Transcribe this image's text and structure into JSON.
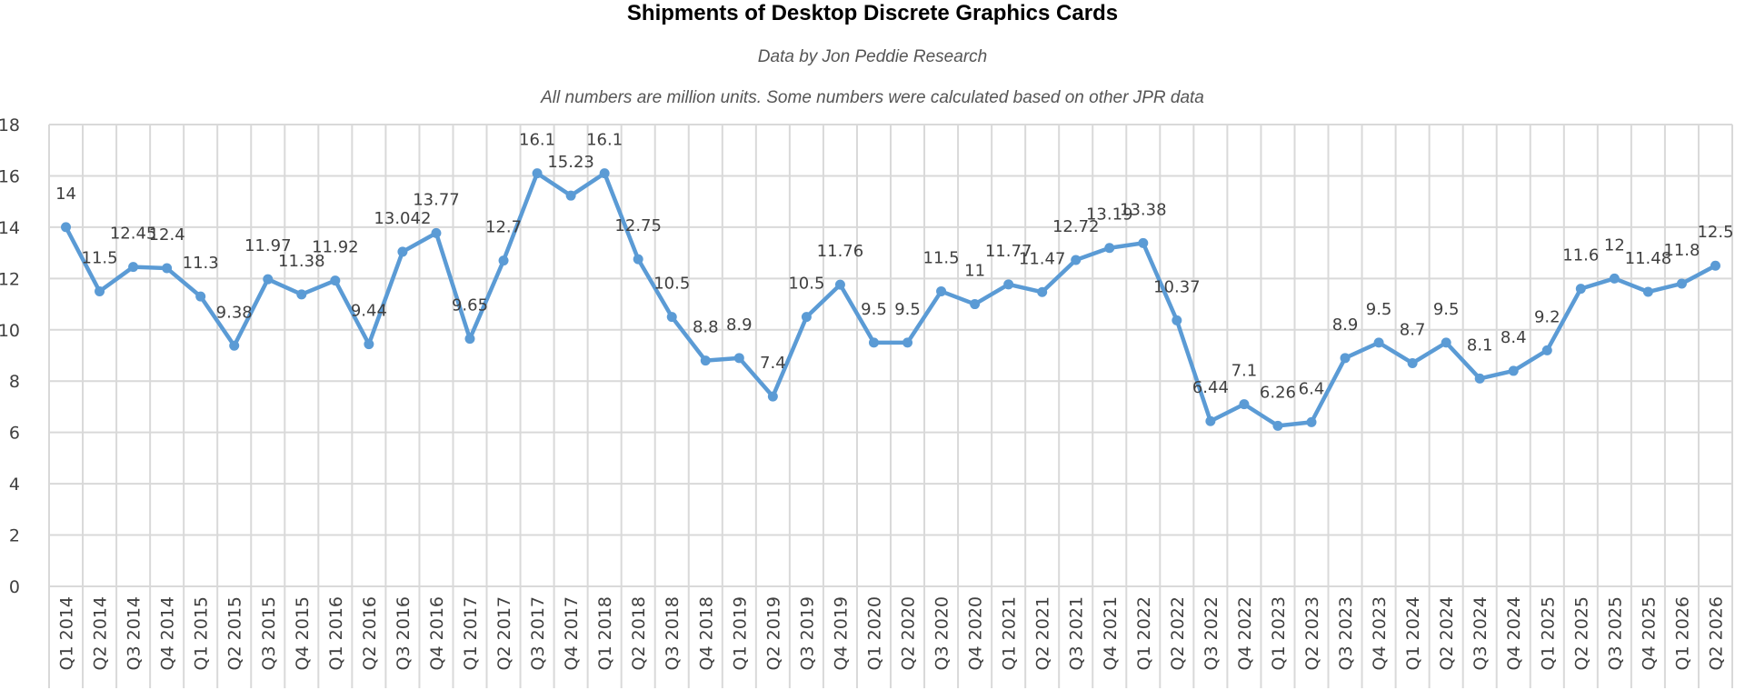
{
  "chart_data": {
    "type": "line",
    "title": "Shipments of Desktop Discrete Graphics Cards",
    "subtitle": "Data by Jon Peddie Research",
    "note": "All numbers are million units. Some numbers were calculated based on other JPR data",
    "xlabel": "",
    "ylabel": "",
    "ylim": [
      0,
      18
    ],
    "yticks": [
      0,
      2,
      4,
      6,
      8,
      10,
      12,
      14,
      16,
      18
    ],
    "grid": true,
    "legend": "none",
    "categories": [
      "Q1 2014",
      "Q2 2014",
      "Q3 2014",
      "Q4 2014",
      "Q1 2015",
      "Q2 2015",
      "Q3 2015",
      "Q4 2015",
      "Q1 2016",
      "Q2 2016",
      "Q3 2016",
      "Q4 2016",
      "Q1 2017",
      "Q2 2017",
      "Q3 2017",
      "Q4 2017",
      "Q1 2018",
      "Q2 2018",
      "Q3 2018",
      "Q4 2018",
      "Q1 2019",
      "Q2 2019",
      "Q3 2019",
      "Q4 2019",
      "Q1 2020",
      "Q2 2020",
      "Q3 2020",
      "Q4 2020",
      "Q1 2021",
      "Q2 2021",
      "Q3 2021",
      "Q4 2021",
      "Q1 2022",
      "Q2 2022",
      "Q3 2022",
      "Q4 2022",
      "Q1 2023",
      "Q2 2023",
      "Q3 2023",
      "Q4 2023",
      "Q1 2024",
      "Q2 2024",
      "Q3 2024",
      "Q4 2024",
      "Q1 2025",
      "Q2 2025",
      "Q3 2025",
      "Q4 2025",
      "Q1 2026",
      "Q2 2026"
    ],
    "series": [
      {
        "values": [
          14,
          11.5,
          12.45,
          12.4,
          11.3,
          9.38,
          11.97,
          11.38,
          11.92,
          9.44,
          13.042,
          13.77,
          9.65,
          12.7,
          16.1,
          15.23,
          16.1,
          12.75,
          10.5,
          8.8,
          8.9,
          7.4,
          10.5,
          11.76,
          9.5,
          9.5,
          11.5,
          11,
          11.77,
          11.47,
          12.72,
          13.19,
          13.38,
          10.37,
          6.44,
          7.1,
          6.26,
          6.4,
          8.9,
          9.5,
          8.7,
          9.5,
          8.1,
          8.4,
          9.2,
          11.6,
          12,
          11.48,
          11.8,
          12.5
        ],
        "labels": [
          "14",
          "11.5",
          "12.45",
          "12.4",
          "11.3",
          "9.38",
          "11.97",
          "11.38",
          "11.92",
          "9.44",
          "13.042",
          "13.77",
          "9.65",
          "12.7",
          "16.1",
          "15.23",
          "16.1",
          "12.75",
          "10.5",
          "8.8",
          "8.9",
          "7.4",
          "10.5",
          "11.76",
          "9.5",
          "9.5",
          "11.5",
          "11",
          "11.77",
          "11.47",
          "12.72",
          "13.19",
          "13.38",
          "10.37",
          "6.44",
          "7.1",
          "6.26",
          "6.4",
          "8.9",
          "9.5",
          "8.7",
          "9.5",
          "8.1",
          "8.4",
          "9.2",
          "11.6",
          "12",
          "11.48",
          "11.8",
          "12.5"
        ]
      }
    ]
  },
  "colors": {
    "line": "#5b9bd5",
    "grid": "#d9d9d9",
    "text": "#404040"
  }
}
